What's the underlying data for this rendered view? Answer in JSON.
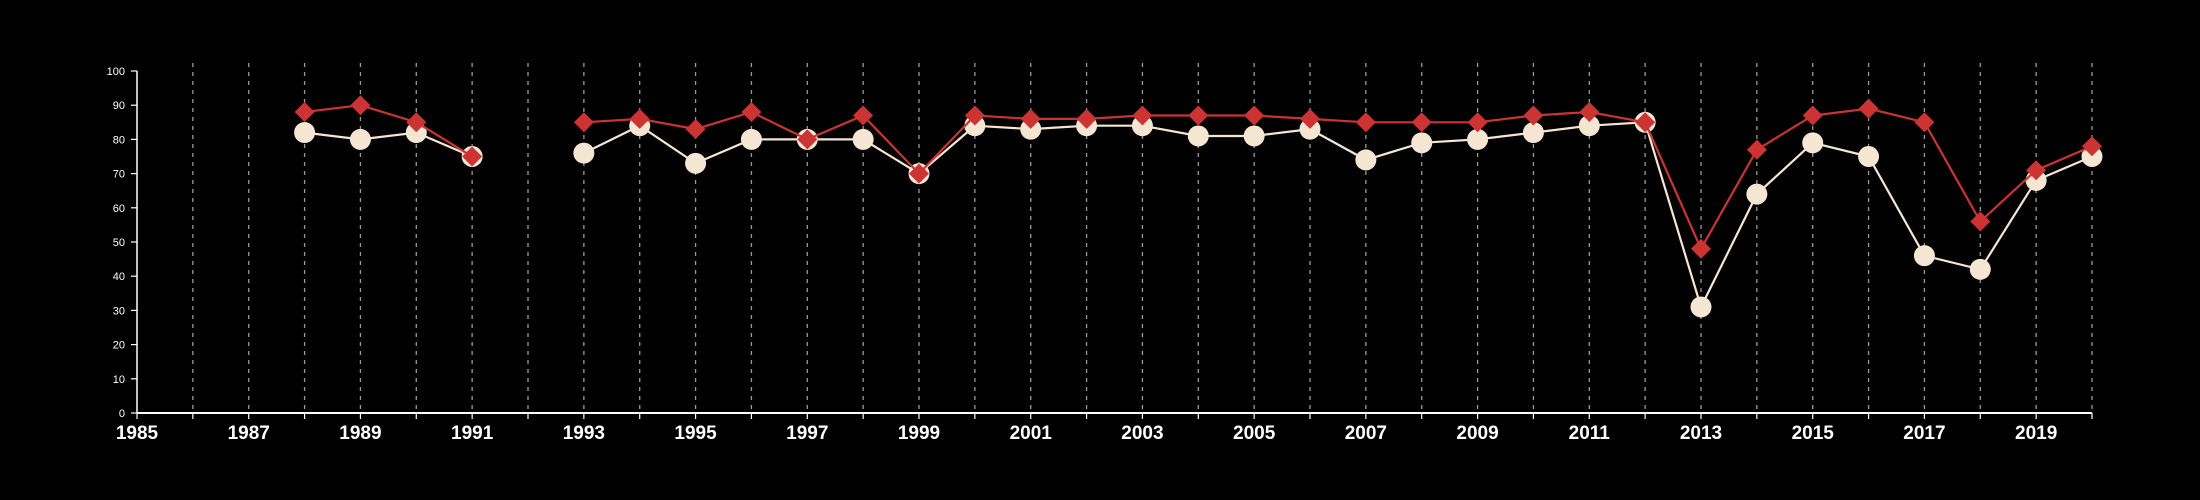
{
  "chart_data": {
    "type": "line",
    "title": "",
    "xlabel": "",
    "ylabel": "",
    "xlim": [
      1985,
      2020
    ],
    "ylim": [
      0,
      100
    ],
    "x_ticks": [
      "1985",
      "1987",
      "1989",
      "1991",
      "1993",
      "1995",
      "1997",
      "1999",
      "2001",
      "2003",
      "2005",
      "2007",
      "2009",
      "2011",
      "2013",
      "2015",
      "2017",
      "2019"
    ],
    "y_ticks": [
      "0",
      "10",
      "20",
      "30",
      "40",
      "50",
      "60",
      "70",
      "80",
      "90",
      "100"
    ],
    "grid": "vertical dashed lines at each year",
    "legend": "none",
    "series": [
      {
        "color": "#cc3333",
        "marker": "diamond",
        "points": [
          [
            [
              1988,
              88
            ],
            [
              1989,
              90
            ],
            [
              1990,
              85
            ],
            [
              1991,
              75
            ]
          ],
          [
            [
              1993,
              85
            ],
            [
              1994,
              86
            ],
            [
              1995,
              83
            ],
            [
              1996,
              88
            ],
            [
              1997,
              80
            ],
            [
              1998,
              87
            ],
            [
              1999,
              70
            ],
            [
              2000,
              87
            ],
            [
              2001,
              86
            ],
            [
              2002,
              86
            ],
            [
              2003,
              87
            ],
            [
              2004,
              87
            ],
            [
              2005,
              87
            ],
            [
              2006,
              86
            ],
            [
              2007,
              85
            ],
            [
              2008,
              85
            ],
            [
              2009,
              85
            ],
            [
              2010,
              87
            ],
            [
              2011,
              88
            ],
            [
              2012,
              85
            ],
            [
              2013,
              48
            ],
            [
              2014,
              77
            ],
            [
              2015,
              87
            ],
            [
              2016,
              89
            ],
            [
              2017,
              85
            ],
            [
              2018,
              56
            ],
            [
              2019,
              71
            ],
            [
              2020,
              78
            ]
          ]
        ]
      },
      {
        "color": "#f5e6d3",
        "marker": "circle",
        "points": [
          [
            [
              1988,
              82
            ],
            [
              1989,
              80
            ],
            [
              1990,
              82
            ],
            [
              1991,
              75
            ]
          ],
          [
            [
              1993,
              76
            ],
            [
              1994,
              84
            ],
            [
              1995,
              73
            ],
            [
              1996,
              80
            ],
            [
              1997,
              80
            ],
            [
              1998,
              80
            ],
            [
              1999,
              70
            ],
            [
              2000,
              84
            ],
            [
              2001,
              83
            ],
            [
              2002,
              84
            ],
            [
              2003,
              84
            ],
            [
              2004,
              81
            ],
            [
              2005,
              81
            ],
            [
              2006,
              83
            ],
            [
              2007,
              74
            ],
            [
              2008,
              79
            ],
            [
              2009,
              80
            ],
            [
              2010,
              82
            ],
            [
              2011,
              84
            ],
            [
              2012,
              85
            ],
            [
              2013,
              31
            ],
            [
              2014,
              64
            ],
            [
              2015,
              79
            ],
            [
              2016,
              75
            ],
            [
              2017,
              46
            ],
            [
              2018,
              42
            ],
            [
              2019,
              68
            ],
            [
              2020,
              75
            ]
          ]
        ]
      }
    ]
  }
}
